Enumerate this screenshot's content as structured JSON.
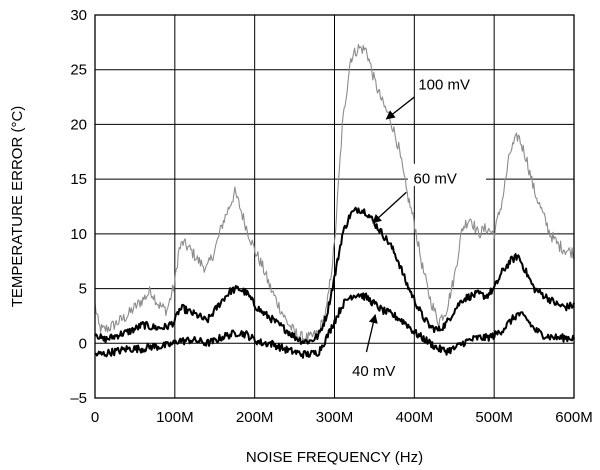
{
  "chart_data": {
    "type": "line",
    "title": "",
    "xlabel": "NOISE FREQUENCY (Hz)",
    "ylabel": "TEMPERATURE ERROR (°C)",
    "xlim": [
      0,
      600
    ],
    "ylim": [
      -5,
      30
    ],
    "grid": true,
    "x_ticks": [
      {
        "value": 0,
        "label": "0"
      },
      {
        "value": 100,
        "label": "100M"
      },
      {
        "value": 200,
        "label": "200M"
      },
      {
        "value": 300,
        "label": "300M"
      },
      {
        "value": 400,
        "label": "400M"
      },
      {
        "value": 500,
        "label": "500M"
      },
      {
        "value": 600,
        "label": "600M"
      }
    ],
    "y_ticks": [
      {
        "value": -5,
        "label": "–5"
      },
      {
        "value": 0,
        "label": "0"
      },
      {
        "value": 5,
        "label": "5"
      },
      {
        "value": 10,
        "label": "10"
      },
      {
        "value": 15,
        "label": "15"
      },
      {
        "value": 20,
        "label": "20"
      },
      {
        "value": 25,
        "label": "25"
      },
      {
        "value": 30,
        "label": "30"
      }
    ],
    "series": [
      {
        "name": "100 mV",
        "color": "#8c8c8c",
        "x": [
          0,
          5,
          10,
          20,
          30,
          40,
          50,
          60,
          70,
          80,
          90,
          100,
          105,
          110,
          120,
          130,
          140,
          150,
          160,
          170,
          175,
          180,
          190,
          200,
          210,
          220,
          230,
          240,
          250,
          260,
          270,
          280,
          290,
          300,
          310,
          320,
          330,
          340,
          350,
          360,
          370,
          380,
          390,
          400,
          410,
          420,
          430,
          440,
          450,
          460,
          470,
          480,
          490,
          500,
          510,
          520,
          530,
          540,
          550,
          560,
          570,
          580,
          590,
          600
        ],
        "y": [
          3.5,
          1.5,
          1.2,
          1.5,
          2.0,
          2.5,
          3.3,
          4.0,
          4.8,
          3.5,
          3.0,
          5.5,
          8.5,
          9.2,
          8.5,
          7.5,
          6.8,
          8.5,
          11.0,
          12.8,
          13.8,
          12.8,
          10.5,
          8.5,
          7.0,
          5.0,
          3.5,
          2.0,
          1.0,
          0.5,
          0.5,
          1.0,
          3.0,
          9.0,
          20.0,
          26.0,
          27.0,
          26.8,
          24.0,
          22.0,
          20.5,
          18.0,
          14.0,
          11.0,
          7.0,
          4.0,
          2.0,
          3.0,
          6.0,
          10.5,
          11.5,
          10.0,
          10.5,
          10.0,
          13.0,
          17.5,
          19.0,
          17.0,
          14.0,
          12.0,
          10.0,
          9.0,
          8.5,
          8.3
        ]
      },
      {
        "name": "60 mV",
        "color": "#000000",
        "x": [
          0,
          10,
          20,
          30,
          40,
          50,
          60,
          70,
          80,
          90,
          100,
          105,
          110,
          120,
          130,
          140,
          150,
          160,
          170,
          180,
          190,
          200,
          210,
          220,
          230,
          240,
          250,
          260,
          270,
          280,
          290,
          300,
          310,
          320,
          330,
          340,
          350,
          360,
          370,
          380,
          390,
          400,
          410,
          420,
          430,
          440,
          450,
          460,
          470,
          480,
          490,
          500,
          510,
          520,
          530,
          540,
          550,
          560,
          570,
          580,
          590,
          600
        ],
        "y": [
          1.0,
          0.3,
          0.5,
          0.8,
          1.0,
          1.3,
          1.7,
          1.5,
          1.4,
          1.5,
          2.0,
          3.0,
          3.2,
          2.8,
          2.5,
          2.0,
          3.0,
          4.0,
          4.8,
          5.0,
          4.6,
          3.5,
          2.8,
          2.3,
          1.7,
          1.2,
          0.6,
          0.2,
          0.2,
          0.7,
          2.5,
          6.0,
          10.0,
          11.8,
          12.3,
          12.0,
          11.0,
          10.0,
          9.0,
          7.5,
          5.5,
          4.0,
          2.5,
          1.5,
          1.2,
          1.8,
          3.0,
          4.0,
          4.3,
          4.5,
          4.3,
          5.0,
          6.5,
          7.5,
          8.0,
          6.5,
          5.0,
          4.5,
          4.0,
          3.5,
          3.3,
          3.5
        ]
      },
      {
        "name": "40 mV",
        "color": "#000000",
        "x": [
          0,
          10,
          20,
          30,
          40,
          50,
          60,
          70,
          80,
          90,
          100,
          105,
          110,
          120,
          130,
          140,
          150,
          160,
          170,
          180,
          190,
          200,
          210,
          220,
          230,
          240,
          250,
          260,
          270,
          280,
          290,
          300,
          310,
          320,
          330,
          340,
          350,
          360,
          370,
          380,
          390,
          400,
          410,
          420,
          430,
          440,
          450,
          460,
          470,
          480,
          490,
          500,
          510,
          520,
          530,
          540,
          550,
          560,
          570,
          580,
          590,
          600
        ],
        "y": [
          -1.0,
          -1.0,
          -0.8,
          -0.7,
          -0.5,
          -0.5,
          -0.5,
          -0.3,
          -0.3,
          -0.2,
          0.0,
          0.3,
          0.2,
          0.3,
          0.2,
          0.0,
          0.2,
          0.6,
          0.8,
          1.0,
          0.8,
          0.3,
          0.0,
          0.0,
          -0.3,
          -0.6,
          -0.8,
          -1.0,
          -1.0,
          -0.8,
          0.5,
          2.0,
          3.5,
          4.3,
          4.5,
          4.2,
          3.6,
          3.0,
          2.7,
          2.3,
          1.8,
          1.0,
          0.5,
          0.0,
          -0.5,
          -0.7,
          -0.5,
          0.0,
          0.3,
          0.5,
          0.5,
          0.7,
          1.2,
          2.0,
          2.7,
          2.3,
          1.3,
          0.8,
          0.6,
          0.5,
          0.5,
          0.5
        ]
      }
    ],
    "annotations": [
      {
        "text": "100 mV",
        "series": 0
      },
      {
        "text": "60 mV",
        "series": 1
      },
      {
        "text": "40 mV",
        "series": 2
      }
    ]
  }
}
